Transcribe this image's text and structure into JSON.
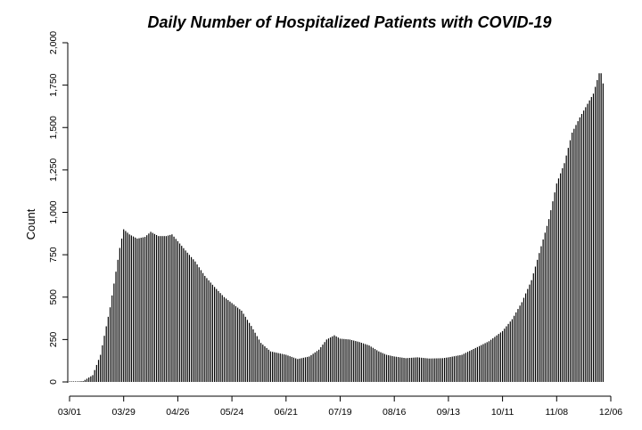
{
  "chart_data": {
    "type": "bar",
    "title": "Daily Number of Hospitalized Patients with COVID-19",
    "xlabel": "",
    "ylabel": "Count",
    "ylim": [
      0,
      2000
    ],
    "yticks": [
      0,
      250,
      500,
      750,
      1000,
      1250,
      1500,
      1750,
      2000
    ],
    "ytick_labels": [
      "0",
      "250",
      "500",
      "750",
      "1,000",
      "1,250",
      "1,500",
      "1,750",
      "2,000"
    ],
    "xtick_labels": [
      "03/01",
      "03/29",
      "04/26",
      "05/24",
      "06/21",
      "07/19",
      "08/16",
      "09/13",
      "10/11",
      "11/08",
      "12/06"
    ],
    "x_start": "03/01",
    "x_end": "12/06",
    "bar_color": "#000000",
    "grid": false,
    "series": [
      {
        "values_by_date": [
          [
            "03/01",
            0
          ],
          [
            "03/08",
            5
          ],
          [
            "03/13",
            40
          ],
          [
            "03/17",
            160
          ],
          [
            "03/22",
            440
          ],
          [
            "03/27",
            790
          ],
          [
            "03/29",
            900
          ],
          [
            "04/01",
            870
          ],
          [
            "04/05",
            845
          ],
          [
            "04/09",
            855
          ],
          [
            "04/12",
            885
          ],
          [
            "04/16",
            860
          ],
          [
            "04/20",
            860
          ],
          [
            "04/23",
            870
          ],
          [
            "04/26",
            830
          ],
          [
            "04/30",
            775
          ],
          [
            "05/05",
            710
          ],
          [
            "05/10",
            625
          ],
          [
            "05/15",
            560
          ],
          [
            "05/20",
            500
          ],
          [
            "05/24",
            465
          ],
          [
            "05/29",
            420
          ],
          [
            "06/03",
            330
          ],
          [
            "06/08",
            230
          ],
          [
            "06/13",
            180
          ],
          [
            "06/21",
            160
          ],
          [
            "06/27",
            135
          ],
          [
            "07/03",
            150
          ],
          [
            "07/08",
            190
          ],
          [
            "07/12",
            250
          ],
          [
            "07/16",
            275
          ],
          [
            "07/19",
            255
          ],
          [
            "07/24",
            250
          ],
          [
            "07/29",
            235
          ],
          [
            "08/03",
            215
          ],
          [
            "08/08",
            180
          ],
          [
            "08/12",
            160
          ],
          [
            "08/16",
            150
          ],
          [
            "08/22",
            140
          ],
          [
            "08/28",
            145
          ],
          [
            "09/03",
            138
          ],
          [
            "09/10",
            140
          ],
          [
            "09/13",
            145
          ],
          [
            "09/20",
            160
          ],
          [
            "09/27",
            200
          ],
          [
            "10/04",
            240
          ],
          [
            "10/11",
            300
          ],
          [
            "10/16",
            370
          ],
          [
            "10/21",
            470
          ],
          [
            "10/26",
            600
          ],
          [
            "10/31",
            800
          ],
          [
            "11/04",
            960
          ],
          [
            "11/08",
            1170
          ],
          [
            "11/12",
            1290
          ],
          [
            "11/16",
            1470
          ],
          [
            "11/20",
            1560
          ],
          [
            "11/24",
            1640
          ],
          [
            "11/27",
            1700
          ],
          [
            "11/30",
            1820
          ],
          [
            "12/01",
            1820
          ],
          [
            "12/02",
            1760
          ]
        ]
      }
    ]
  }
}
